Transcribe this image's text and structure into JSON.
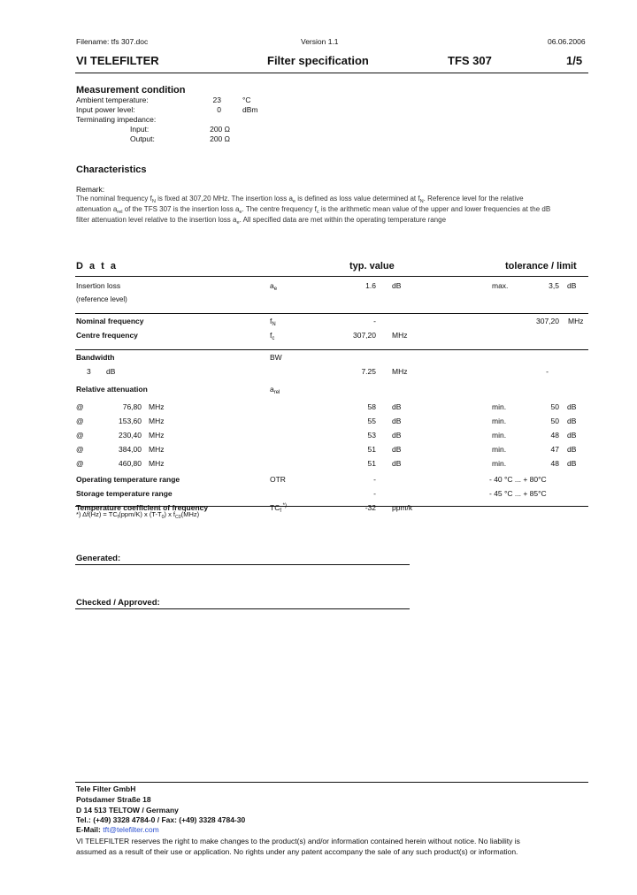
{
  "header": {
    "filename": "Filename: tfs 307.doc",
    "version": "Version 1.1",
    "date": "06.06.2006",
    "company": "VI TELEFILTER",
    "doc_title": "Filter specification",
    "part": "TFS 307",
    "page": "1/5"
  },
  "measurement": {
    "title": "Measurement condition",
    "rows": [
      {
        "label": "Ambient temperature:",
        "value": "23",
        "unit": "°C"
      },
      {
        "label": "Input power level:",
        "value": "0",
        "unit": "dBm"
      },
      {
        "label": "Terminating impedance:",
        "value": "",
        "unit": ""
      },
      {
        "label": "Input:",
        "value": "200 Ω",
        "unit": "",
        "indent": true
      },
      {
        "label": "Output:",
        "value": "200 Ω",
        "unit": "",
        "indent": true
      }
    ]
  },
  "characteristics": {
    "title": "Characteristics",
    "remark_label": "Remark:",
    "remark_lines": [
      [
        {
          "t": "The nominal frequency f"
        },
        {
          "sub": "N"
        },
        {
          "t": " is fixed at 307,20 MHz. The insertion loss a"
        },
        {
          "sub": "e"
        },
        {
          "t": " is defined as  loss value determined at f"
        },
        {
          "sub": "N"
        },
        {
          "t": ". Reference level for the relative"
        }
      ],
      [
        {
          "t": "attenuation a"
        },
        {
          "sub": "rel"
        },
        {
          "t": " of the TFS 307  is the insertion loss a"
        },
        {
          "sub": "e"
        },
        {
          "t": ". The centre frequency f"
        },
        {
          "sub": "c"
        },
        {
          "t": " is the arithmetic mean value of the upper and lower frequencies at the  dB"
        }
      ],
      [
        {
          "t": "filter attenuation level relative to the insertion loss a"
        },
        {
          "sub": "e"
        },
        {
          "t": ". All specified data are met within the operating temperature range"
        }
      ]
    ]
  },
  "data_table": {
    "col_data": "D a t a",
    "col_typ": "typ. value",
    "col_tol": "tolerance / limit",
    "rows": [
      {
        "label": "Insertion loss",
        "bold": false,
        "sym": "a",
        "sub": "e",
        "typ": "1.6",
        "typ_unit": "dB",
        "tol_kind": "max.",
        "tol": "3,5",
        "tol_unit": "dB"
      },
      {
        "label": "(reference level)",
        "small": true
      },
      {
        "line": true
      },
      {
        "label": "Nominal frequency",
        "bold": true,
        "sym": "f",
        "sub": "N",
        "typ": "-",
        "tol": "307,20",
        "tol_unit": "MHz"
      },
      {
        "label": "Centre frequency",
        "bold": true,
        "sym": "f",
        "sub": "c",
        "typ": "307,20",
        "typ_unit": "MHz"
      },
      {
        "line": true
      },
      {
        "label": "Bandwidth",
        "bold": true,
        "sym": "BW"
      },
      {
        "pre": "3",
        "pre_unit": "dB",
        "typ": "7.25",
        "typ_unit": "MHz",
        "tol": "-"
      },
      {
        "label": "Relative attenuation",
        "bold": true,
        "sym": "a",
        "sub": "rel",
        "gap": true
      },
      {
        "at": "@",
        "freq": "76,80",
        "freq_unit": "MHz",
        "typ": "58",
        "typ_unit": "dB",
        "tol_kind": "min.",
        "tol": "50",
        "tol_unit": "dB",
        "gap": true
      },
      {
        "at": "@",
        "freq": "153,60",
        "freq_unit": "MHz",
        "typ": "55",
        "typ_unit": "dB",
        "tol_kind": "min.",
        "tol": "50",
        "tol_unit": "dB"
      },
      {
        "at": "@",
        "freq": "230,40",
        "freq_unit": "MHz",
        "typ": "53",
        "typ_unit": "dB",
        "tol_kind": "min.",
        "tol": "48",
        "tol_unit": "dB"
      },
      {
        "at": "@",
        "freq": "384,00",
        "freq_unit": "MHz",
        "typ": "51",
        "typ_unit": "dB",
        "tol_kind": "min.",
        "tol": "47",
        "tol_unit": "dB"
      },
      {
        "at": "@",
        "freq": "460,80",
        "freq_unit": "MHz",
        "typ": "51",
        "typ_unit": "dB",
        "tol_kind": "min.",
        "tol": "48",
        "tol_unit": "dB"
      },
      {
        "label": "Operating temperature range",
        "bold": true,
        "sym": "OTR",
        "typ": "-",
        "range": "- 40 °C ... + 80°C",
        "gap2": true
      },
      {
        "label": "Storage temperature range",
        "bold": true,
        "typ": "-",
        "range": "- 45 °C ... + 85°C"
      },
      {
        "label": "Temperature coefficient of frequency",
        "bold": true,
        "sym": "TC",
        "sub": "f",
        "sup": "*)",
        "typ": "-32",
        "typ_unit": "ppm/k"
      }
    ],
    "footnote": [
      {
        "t": "*) Δf(Hz) = TC"
      },
      {
        "sub": "f"
      },
      {
        "t": "(ppm/K) x (T-T"
      },
      {
        "sub": "0"
      },
      {
        "t": ") x f"
      },
      {
        "sub": "C0"
      },
      {
        "t": "(MHz)"
      }
    ]
  },
  "signatures": {
    "generated": "Generated:",
    "checked": "Checked / Approved:"
  },
  "footer": {
    "company": "Tele Filter GmbH",
    "street": "Potsdamer Straße 18",
    "city": "D 14 513 TELTOW / Germany",
    "phone": "Tel.: (+49) 3328 4784-0 / Fax: (+49) 3328 4784-30",
    "email_label": "E-Mail:",
    "email": "tft@telefilter.com",
    "disclaimer_1": "VI TELEFILTER reserves the right to make changes to the product(s) and/or information contained herein without notice.  No liability is",
    "disclaimer_2": "assumed as a result of their use or application.  No rights under any patent accompany the sale of any such product(s) or information."
  }
}
